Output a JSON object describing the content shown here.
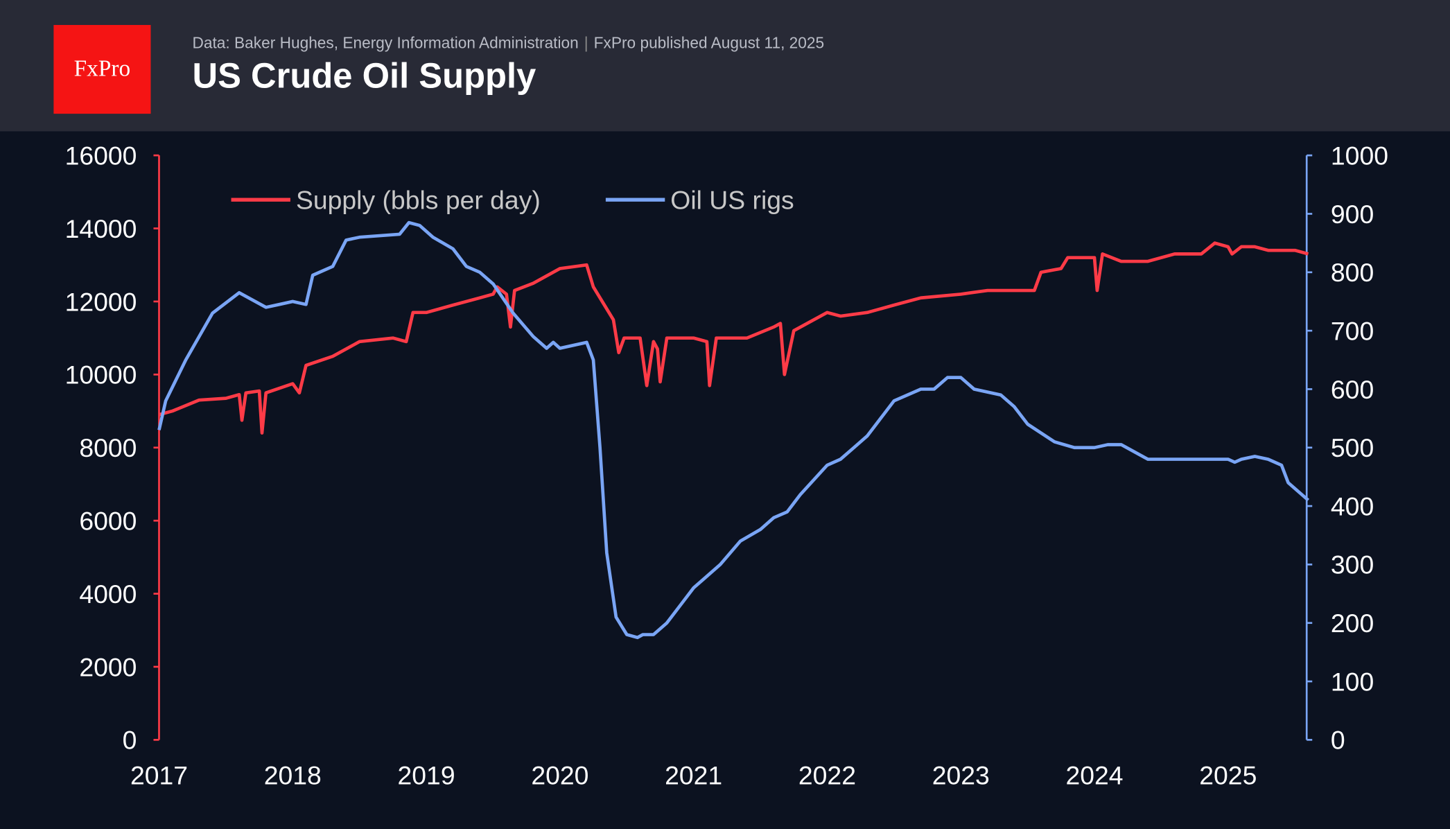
{
  "header": {
    "logo_text": "FxPro",
    "source": "Data: Baker Hughes, Energy Information Administration",
    "published": "FxPro published August 11, 2025",
    "title": "US Crude Oil Supply"
  },
  "chart_data": {
    "type": "line",
    "title": "US Crude Oil Supply",
    "legend_position": "top-left",
    "grid": false,
    "x_ticks": [
      "2017",
      "2018",
      "2019",
      "2020",
      "2021",
      "2022",
      "2023",
      "2024",
      "2025"
    ],
    "xlim": [
      2017,
      2025.6
    ],
    "y_left": {
      "ylim": [
        0,
        16000
      ],
      "ticks": [
        "0",
        "2000",
        "4000",
        "6000",
        "8000",
        "10000",
        "12000",
        "14000",
        "16000"
      ],
      "color": "#ff3b47"
    },
    "y_right": {
      "ylim": [
        0,
        1000
      ],
      "ticks": [
        "0",
        "100",
        "200",
        "300",
        "400",
        "500",
        "600",
        "700",
        "800",
        "900",
        "1000"
      ],
      "color": "#7aa5f5"
    },
    "series": [
      {
        "name": "Supply (bbls per day)",
        "axis": "left",
        "color": "#ff3b47",
        "points": [
          [
            2017.0,
            8900
          ],
          [
            2017.1,
            9000
          ],
          [
            2017.3,
            9300
          ],
          [
            2017.5,
            9350
          ],
          [
            2017.6,
            9450
          ],
          [
            2017.62,
            8750
          ],
          [
            2017.65,
            9500
          ],
          [
            2017.75,
            9550
          ],
          [
            2017.77,
            8400
          ],
          [
            2017.8,
            9500
          ],
          [
            2018.0,
            9750
          ],
          [
            2018.05,
            9500
          ],
          [
            2018.1,
            10250
          ],
          [
            2018.3,
            10500
          ],
          [
            2018.5,
            10900
          ],
          [
            2018.75,
            11000
          ],
          [
            2018.85,
            10900
          ],
          [
            2018.9,
            11700
          ],
          [
            2019.0,
            11700
          ],
          [
            2019.2,
            11900
          ],
          [
            2019.4,
            12100
          ],
          [
            2019.5,
            12200
          ],
          [
            2019.53,
            12400
          ],
          [
            2019.6,
            12200
          ],
          [
            2019.63,
            11300
          ],
          [
            2019.66,
            12300
          ],
          [
            2019.8,
            12500
          ],
          [
            2020.0,
            12900
          ],
          [
            2020.2,
            13000
          ],
          [
            2020.25,
            12400
          ],
          [
            2020.4,
            11500
          ],
          [
            2020.44,
            10600
          ],
          [
            2020.48,
            11000
          ],
          [
            2020.6,
            11000
          ],
          [
            2020.65,
            9700
          ],
          [
            2020.7,
            10900
          ],
          [
            2020.73,
            10700
          ],
          [
            2020.75,
            9800
          ],
          [
            2020.8,
            11000
          ],
          [
            2021.0,
            11000
          ],
          [
            2021.1,
            10900
          ],
          [
            2021.12,
            9700
          ],
          [
            2021.17,
            11000
          ],
          [
            2021.4,
            11000
          ],
          [
            2021.6,
            11300
          ],
          [
            2021.65,
            11400
          ],
          [
            2021.68,
            10000
          ],
          [
            2021.75,
            11200
          ],
          [
            2022.0,
            11700
          ],
          [
            2022.1,
            11600
          ],
          [
            2022.3,
            11700
          ],
          [
            2022.5,
            11900
          ],
          [
            2022.7,
            12100
          ],
          [
            2023.0,
            12200
          ],
          [
            2023.2,
            12300
          ],
          [
            2023.55,
            12300
          ],
          [
            2023.6,
            12800
          ],
          [
            2023.75,
            12900
          ],
          [
            2023.8,
            13200
          ],
          [
            2024.0,
            13200
          ],
          [
            2024.02,
            12300
          ],
          [
            2024.06,
            13300
          ],
          [
            2024.2,
            13100
          ],
          [
            2024.4,
            13100
          ],
          [
            2024.6,
            13300
          ],
          [
            2024.8,
            13300
          ],
          [
            2024.9,
            13600
          ],
          [
            2025.0,
            13500
          ],
          [
            2025.03,
            13300
          ],
          [
            2025.1,
            13500
          ],
          [
            2025.2,
            13500
          ],
          [
            2025.3,
            13400
          ],
          [
            2025.5,
            13400
          ],
          [
            2025.6,
            13300
          ]
        ]
      },
      {
        "name": "Oil US rigs",
        "axis": "right",
        "color": "#7aa5f5",
        "points": [
          [
            2017.0,
            530
          ],
          [
            2017.05,
            580
          ],
          [
            2017.2,
            650
          ],
          [
            2017.4,
            730
          ],
          [
            2017.6,
            765
          ],
          [
            2017.8,
            740
          ],
          [
            2017.9,
            745
          ],
          [
            2018.0,
            750
          ],
          [
            2018.1,
            745
          ],
          [
            2018.15,
            795
          ],
          [
            2018.3,
            810
          ],
          [
            2018.4,
            855
          ],
          [
            2018.5,
            860
          ],
          [
            2018.8,
            865
          ],
          [
            2018.87,
            885
          ],
          [
            2018.95,
            880
          ],
          [
            2019.05,
            860
          ],
          [
            2019.2,
            840
          ],
          [
            2019.3,
            810
          ],
          [
            2019.4,
            800
          ],
          [
            2019.5,
            780
          ],
          [
            2019.65,
            730
          ],
          [
            2019.8,
            690
          ],
          [
            2019.9,
            670
          ],
          [
            2019.95,
            680
          ],
          [
            2020.0,
            670
          ],
          [
            2020.2,
            680
          ],
          [
            2020.25,
            650
          ],
          [
            2020.3,
            500
          ],
          [
            2020.35,
            320
          ],
          [
            2020.42,
            210
          ],
          [
            2020.5,
            180
          ],
          [
            2020.58,
            175
          ],
          [
            2020.62,
            180
          ],
          [
            2020.7,
            180
          ],
          [
            2020.8,
            200
          ],
          [
            2020.9,
            230
          ],
          [
            2021.0,
            260
          ],
          [
            2021.2,
            300
          ],
          [
            2021.35,
            340
          ],
          [
            2021.5,
            360
          ],
          [
            2021.6,
            380
          ],
          [
            2021.7,
            390
          ],
          [
            2021.8,
            420
          ],
          [
            2022.0,
            470
          ],
          [
            2022.1,
            480
          ],
          [
            2022.2,
            500
          ],
          [
            2022.3,
            520
          ],
          [
            2022.5,
            580
          ],
          [
            2022.7,
            600
          ],
          [
            2022.8,
            600
          ],
          [
            2022.9,
            620
          ],
          [
            2023.0,
            620
          ],
          [
            2023.1,
            600
          ],
          [
            2023.3,
            590
          ],
          [
            2023.4,
            570
          ],
          [
            2023.5,
            540
          ],
          [
            2023.7,
            510
          ],
          [
            2023.85,
            500
          ],
          [
            2024.0,
            500
          ],
          [
            2024.1,
            505
          ],
          [
            2024.2,
            505
          ],
          [
            2024.4,
            480
          ],
          [
            2024.7,
            480
          ],
          [
            2025.0,
            480
          ],
          [
            2025.05,
            475
          ],
          [
            2025.1,
            480
          ],
          [
            2025.2,
            485
          ],
          [
            2025.3,
            480
          ],
          [
            2025.4,
            470
          ],
          [
            2025.45,
            440
          ],
          [
            2025.55,
            420
          ],
          [
            2025.6,
            410
          ]
        ]
      }
    ]
  }
}
